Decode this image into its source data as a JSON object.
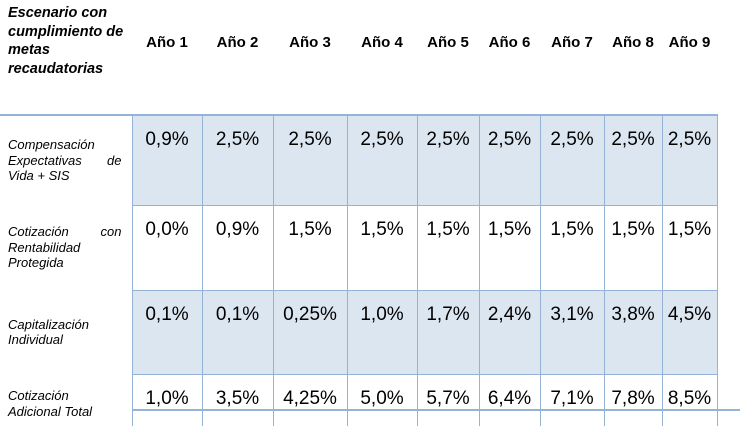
{
  "table": {
    "corner_header": "Escenario con\ncumplimiento de\nmetas\nrecaudatorias",
    "year_headers": [
      "Año 1",
      "Año 2",
      "Año 3",
      "Año 4",
      "Año 5",
      "Año 6",
      "Año 7",
      "Año 8",
      "Año 9"
    ],
    "rows": [
      {
        "label": "Compensación Expectativas de Vida + SIS",
        "shaded": true,
        "values": [
          "0,9%",
          "2,5%",
          "2,5%",
          "2,5%",
          "2,5%",
          "2,5%",
          "2,5%",
          "2,5%",
          "2,5%"
        ]
      },
      {
        "label": "Cotización con Rentabilidad Protegida",
        "shaded": false,
        "values": [
          "0,0%",
          "0,9%",
          "1,5%",
          "1,5%",
          "1,5%",
          "1,5%",
          "1,5%",
          "1,5%",
          "1,5%"
        ]
      },
      {
        "label": "Capitalización Individual",
        "shaded": true,
        "values": [
          "0,1%",
          "0,1%",
          "0,25%",
          "1,0%",
          "1,7%",
          "2,4%",
          "3,1%",
          "3,8%",
          "4,5%"
        ]
      },
      {
        "label": "Cotización Adicional Total",
        "shaded": false,
        "values": [
          "1,0%",
          "3,5%",
          "4,25%",
          "5,0%",
          "5,7%",
          "6,4%",
          "7,1%",
          "7,8%",
          "8,5%"
        ]
      }
    ],
    "colors": {
      "shaded_fill": "#dce6f1",
      "grid_border": "#95b3d7",
      "text": "#000000",
      "background": "#ffffff"
    }
  }
}
